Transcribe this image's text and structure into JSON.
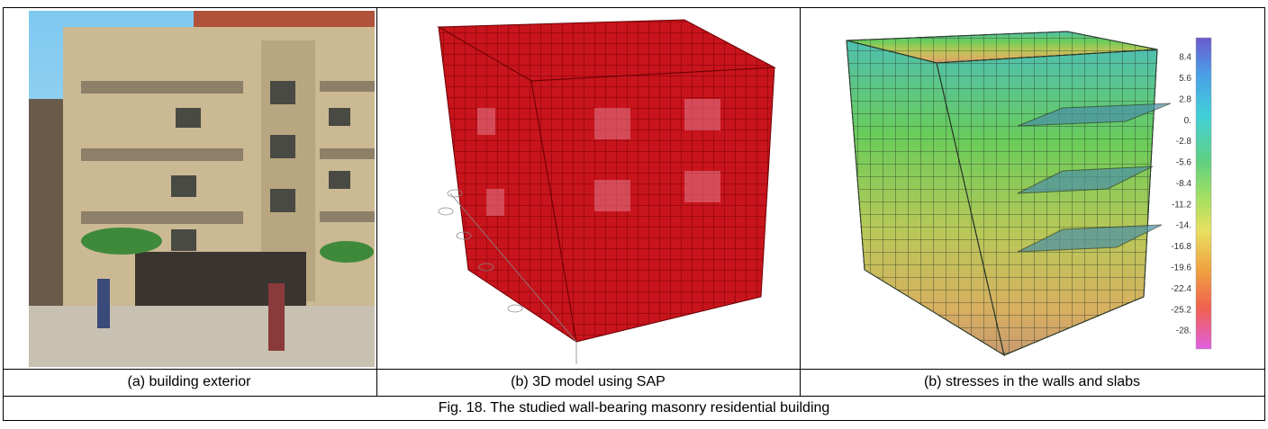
{
  "panels": [
    {
      "caption": "(a) building exterior"
    },
    {
      "caption": "(b)  3D model using SAP"
    },
    {
      "caption": "(b)  stresses in the walls and slabs",
      "colorbar": [
        "8.4",
        "5.6",
        "2.8",
        "0.",
        "-2.8",
        "-5.6",
        "-8.4",
        "-11.2",
        "-14.",
        "-16.8",
        "-19.6",
        "-22.4",
        "-25.2",
        "-28."
      ]
    }
  ],
  "figure_caption": "Fig. 18. The studied wall-bearing masonry residential building"
}
